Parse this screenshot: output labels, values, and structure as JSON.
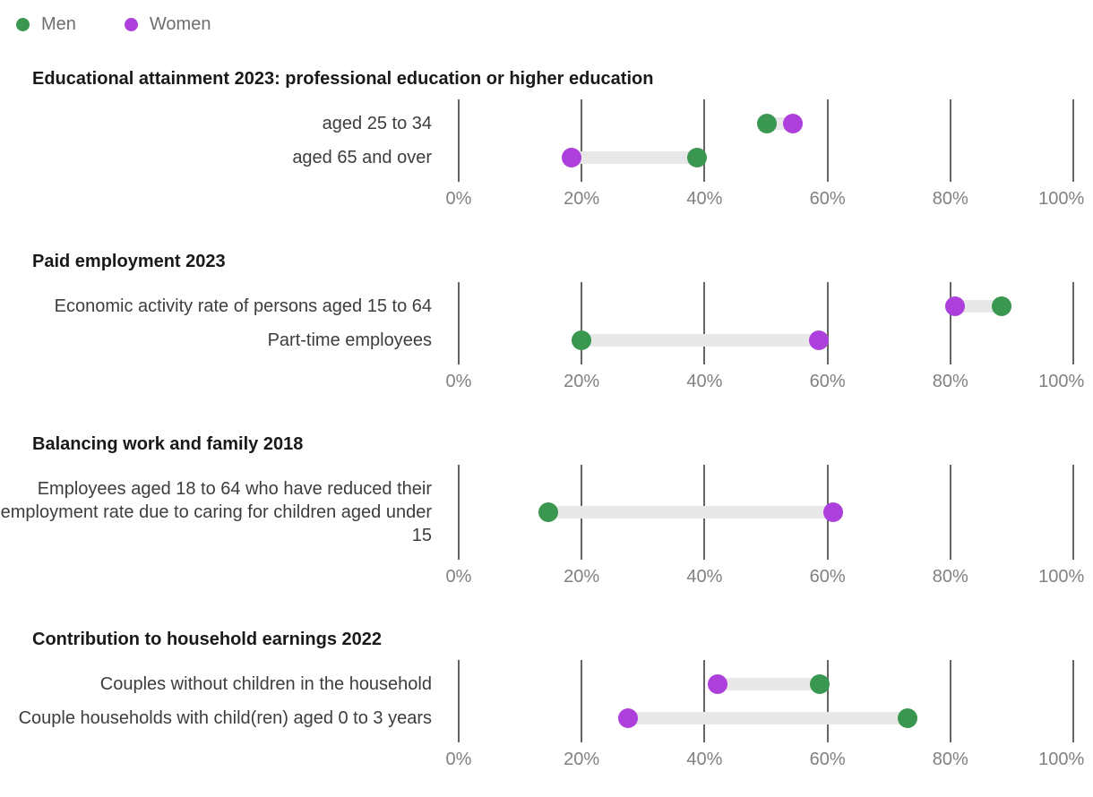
{
  "colors": {
    "men": "#3a9750",
    "women": "#ad3fdd",
    "connector": "#e8e8e8",
    "gridline": "#646464"
  },
  "legend": [
    {
      "key": "men",
      "label": "Men"
    },
    {
      "key": "women",
      "label": "Women"
    }
  ],
  "axis": {
    "xlim": [
      0,
      100
    ],
    "tick_values": [
      0,
      20,
      40,
      60,
      80,
      100
    ],
    "tick_labels": [
      "0%",
      "20%",
      "40%",
      "60%",
      "80%",
      "100%"
    ],
    "grid": true
  },
  "chart_data": [
    {
      "type": "dumbbell",
      "title": "Educational attainment 2023: professional education or higher education",
      "unit": "%",
      "rows": [
        {
          "label": "aged 25 to 34",
          "men": 50.2,
          "women": 54.4
        },
        {
          "label": "aged 65 and over",
          "men": 38.8,
          "women": 18.4
        }
      ]
    },
    {
      "type": "dumbbell",
      "title": "Paid employment 2023",
      "unit": "%",
      "rows": [
        {
          "label": "Economic activity rate of persons aged 15 to 64",
          "men": 88.4,
          "women": 80.7
        },
        {
          "label": "Part-time employees",
          "men": 20.0,
          "women": 58.6
        }
      ]
    },
    {
      "type": "dumbbell",
      "title": "Balancing work and family 2018",
      "unit": "%",
      "rows": [
        {
          "label": "Employees aged 18 to 64 who have reduced their employment rate due to caring for children aged under 15",
          "men": 14.6,
          "women": 61.0
        }
      ]
    },
    {
      "type": "dumbbell",
      "title": "Contribution to household earnings 2022",
      "unit": "%",
      "rows": [
        {
          "label": "Couples without children in the household",
          "men": 58.7,
          "women": 42.1
        },
        {
          "label": "Couple households with child(ren) aged 0 to 3 years",
          "men": 73.0,
          "women": 27.5
        }
      ]
    }
  ]
}
